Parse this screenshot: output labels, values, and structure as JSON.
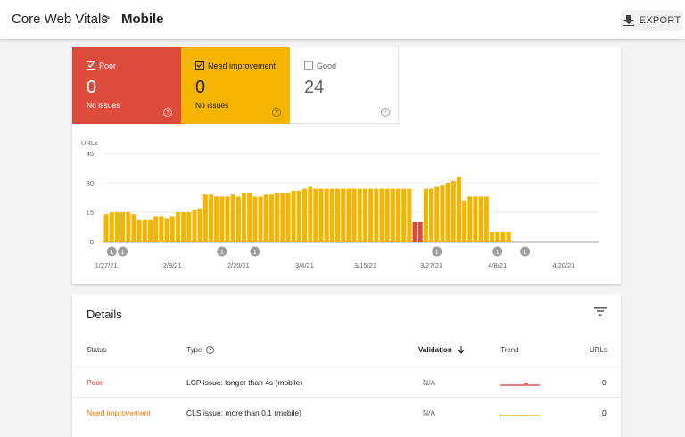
{
  "header": {
    "breadcrumb_root": "Core Web Vitals",
    "breadcrumb_sep": ">",
    "page_title": "Mobile",
    "export_label": "EXPORT"
  },
  "summary": {
    "poor": {
      "label": "Poor",
      "value": "0",
      "sub": "No issues",
      "color": "#dc4b3c",
      "checked": true
    },
    "need_improvement": {
      "label": "Need improvement",
      "value": "0",
      "sub": "No issues",
      "color": "#f4b400",
      "checked": true
    },
    "good": {
      "label": "Good",
      "value": "24",
      "checked": false
    }
  },
  "chart_data": {
    "type": "bar",
    "stacked": true,
    "ylabel": "URLs",
    "yticks": [
      0,
      15,
      30,
      45
    ],
    "ylim": [
      0,
      45
    ],
    "grid": true,
    "xtick_labels": [
      "1/27/21",
      "2/8/21",
      "2/20/21",
      "3/4/21",
      "3/15/21",
      "3/27/21",
      "4/8/21",
      "4/20/21"
    ],
    "xtick_index": [
      0,
      12,
      24,
      36,
      47,
      59,
      71,
      83
    ],
    "series": [
      {
        "name": "Need improvement",
        "color": "#f4b400",
        "values": [
          14,
          15,
          15,
          15,
          15,
          14,
          11,
          11,
          11,
          13,
          13,
          12,
          13,
          15,
          15,
          15,
          16,
          17,
          24,
          24,
          23,
          23,
          23,
          24,
          23,
          25,
          25,
          23,
          23,
          24,
          24,
          25,
          25,
          25,
          26,
          26,
          27,
          28,
          27,
          27,
          27,
          27,
          27,
          27,
          27,
          27,
          27,
          27,
          27,
          27,
          27,
          27,
          27,
          27,
          27,
          27,
          0,
          0,
          27,
          27,
          28,
          29,
          30,
          31,
          33,
          21,
          23,
          23,
          23,
          23,
          5,
          5,
          5,
          5,
          0,
          0,
          0,
          0,
          0,
          0,
          0,
          0,
          0,
          0,
          0,
          0,
          0,
          0,
          0,
          0
        ]
      },
      {
        "name": "Poor",
        "color": "#dc4b3c",
        "values": [
          0,
          0,
          0,
          0,
          0,
          0,
          0,
          0,
          0,
          0,
          0,
          0,
          0,
          0,
          0,
          0,
          0,
          0,
          0,
          0,
          0,
          0,
          0,
          0,
          0,
          0,
          0,
          0,
          0,
          0,
          0,
          0,
          0,
          0,
          0,
          0,
          0,
          0,
          0,
          0,
          0,
          0,
          0,
          0,
          0,
          0,
          0,
          0,
          0,
          0,
          0,
          0,
          0,
          0,
          0,
          0,
          10,
          10,
          0,
          0,
          0,
          0,
          0,
          0,
          0,
          0,
          0,
          0,
          0,
          0,
          0,
          0,
          0,
          0,
          0,
          0,
          0,
          0,
          0,
          0,
          0,
          0,
          0,
          0,
          0,
          0,
          0,
          0,
          0,
          0
        ]
      }
    ],
    "annotations": [
      {
        "index": 1,
        "label": "1"
      },
      {
        "index": 3,
        "label": "1"
      },
      {
        "index": 21,
        "label": "1"
      },
      {
        "index": 27,
        "label": "1"
      },
      {
        "index": 60,
        "label": "1"
      },
      {
        "index": 71,
        "label": "1"
      },
      {
        "index": 76,
        "label": "1"
      }
    ]
  },
  "details": {
    "title": "Details",
    "columns": {
      "status": "Status",
      "type": "Type",
      "validation": "Validation",
      "trend": "Trend",
      "urls": "URLs"
    },
    "rows": [
      {
        "status": "Poor",
        "type": "LCP issue: longer than 4s (mobile)",
        "validation": "N/A",
        "urls": "0",
        "trend_color": "#d93025"
      },
      {
        "status": "Need improvement",
        "type": "CLS issue: more than 0.1 (mobile)",
        "validation": "N/A",
        "urls": "0",
        "trend_color": "#f4b400"
      }
    ]
  },
  "icons": {
    "breadcrumb": "chevron-right-icon",
    "export": "download-icon",
    "help": "help-circle-icon",
    "filter": "filter-icon",
    "sort": "arrow-down-icon",
    "checkbox": "checkbox-icon"
  }
}
